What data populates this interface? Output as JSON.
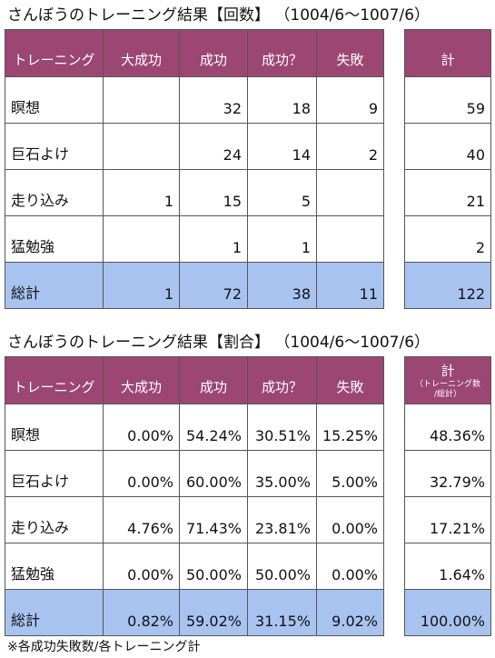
{
  "tables": [
    {
      "title": "さんぼうのトレーニング結果【回数】 （1004/6～1007/6）",
      "header": [
        "トレーニング",
        "大成功",
        "成功",
        "成功？",
        "失敗"
      ],
      "total_header": {
        "label": "計"
      },
      "rows": [
        {
          "label": "瞑想",
          "cells": [
            null,
            32,
            18,
            9
          ],
          "total": 59
        },
        {
          "label": "巨石よけ",
          "cells": [
            null,
            24,
            14,
            2
          ],
          "total": 40
        },
        {
          "label": "走り込み",
          "cells": [
            1,
            15,
            5,
            null
          ],
          "total": 21
        },
        {
          "label": "猛勉強",
          "cells": [
            null,
            1,
            1,
            null
          ],
          "total": 2
        },
        {
          "label": "総計",
          "cells": [
            1,
            72,
            38,
            11
          ],
          "total": 122
        }
      ]
    },
    {
      "title": "さんぼうのトレーニング結果【割合】 （1004/6～1007/6）",
      "header": [
        "トレーニング",
        "大成功",
        "成功",
        "成功？",
        "失敗"
      ],
      "total_header": {
        "label": "計",
        "note": [
          "（トレーニング数",
          "/総計）"
        ]
      },
      "rows": [
        {
          "label": "瞑想",
          "cells": [
            "0.00%",
            "54.24%",
            "30.51%",
            "15.25%"
          ],
          "total": "48.36%"
        },
        {
          "label": "巨石よけ",
          "cells": [
            "0.00%",
            "60.00%",
            "35.00%",
            "5.00%"
          ],
          "total": "32.79%"
        },
        {
          "label": "走り込み",
          "cells": [
            "4.76%",
            "71.43%",
            "23.81%",
            "0.00%"
          ],
          "total": "17.21%"
        },
        {
          "label": "猛勉強",
          "cells": [
            "0.00%",
            "50.00%",
            "50.00%",
            "0.00%"
          ],
          "total": "1.64%"
        },
        {
          "label": "総計",
          "cells": [
            "0.82%",
            "59.02%",
            "31.15%",
            "9.02%"
          ],
          "total": "100.00%"
        }
      ]
    }
  ],
  "footnote": "※各成功失敗数/各トレーニング計"
}
